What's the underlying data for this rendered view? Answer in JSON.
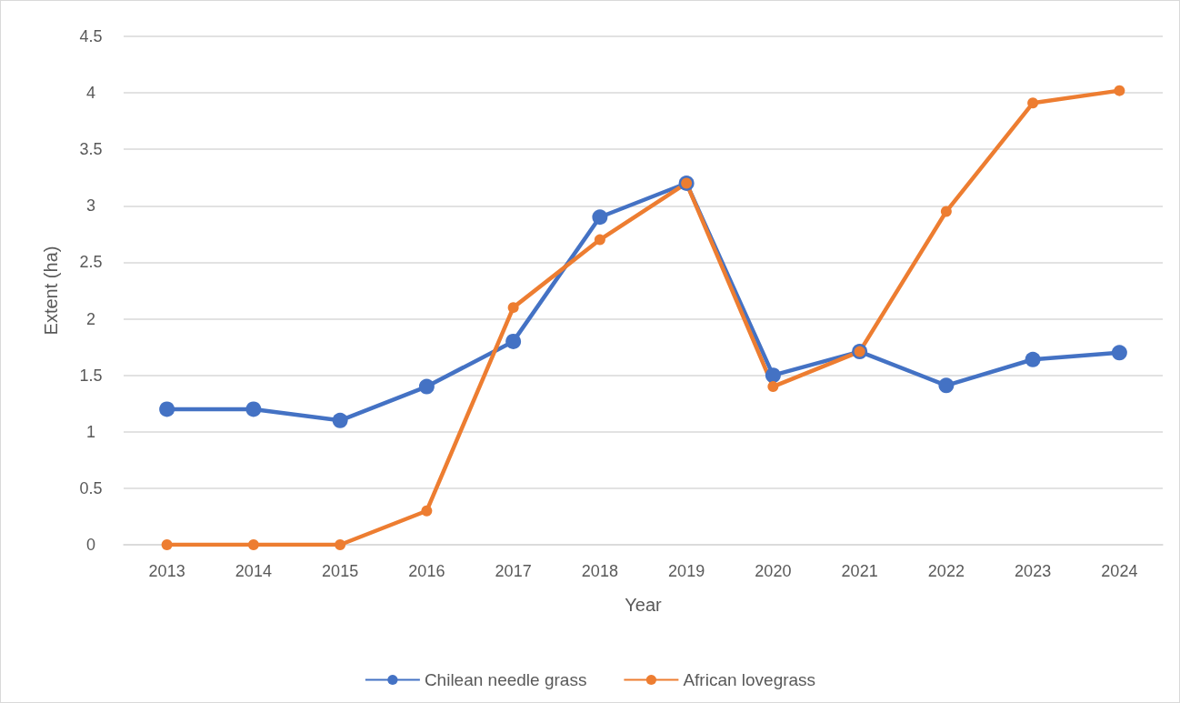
{
  "chart_data": {
    "type": "line",
    "xlabel": "Year",
    "ylabel": "Extent (ha)",
    "categories": [
      "2013",
      "2014",
      "2015",
      "2016",
      "2017",
      "2018",
      "2019",
      "2020",
      "2021",
      "2022",
      "2023",
      "2024"
    ],
    "series": [
      {
        "name": "Chilean needle grass",
        "color": "#4472c4",
        "values": [
          1.2,
          1.2,
          1.1,
          1.4,
          1.8,
          2.9,
          3.2,
          1.5,
          1.71,
          1.41,
          1.64,
          1.7
        ]
      },
      {
        "name": "African lovegrass",
        "color": "#ed7d31",
        "values": [
          0,
          0,
          0,
          0.3,
          2.1,
          2.7,
          3.2,
          1.4,
          1.71,
          2.95,
          3.91,
          4.02
        ]
      }
    ],
    "ylim": [
      0,
      4.5
    ],
    "yticks": [
      0,
      0.5,
      1,
      1.5,
      2,
      2.5,
      3,
      3.5,
      4,
      4.5
    ],
    "grid": "y",
    "legend": "bottom",
    "marker": "circle",
    "line_style": "solid"
  }
}
